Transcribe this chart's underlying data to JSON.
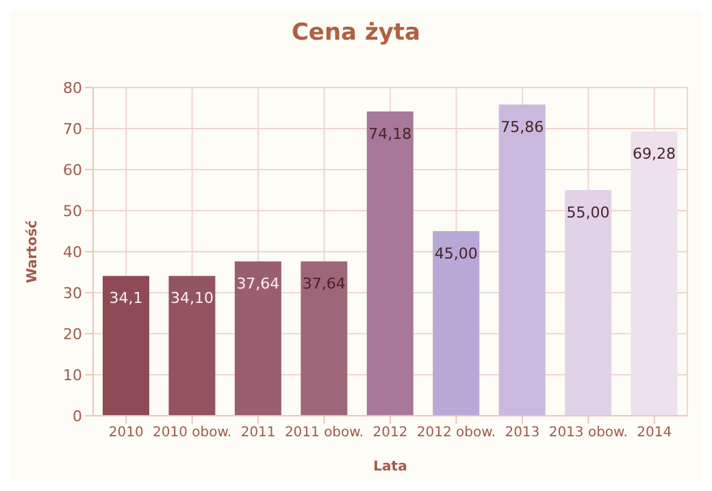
{
  "chart_data": {
    "type": "bar",
    "title": "Cena żyta",
    "xlabel": "Lata",
    "ylabel": "Wartość",
    "categories": [
      "2010",
      "2010 obow.",
      "2011",
      "2011 obow.",
      "2012",
      "2012 obow.",
      "2013",
      "2013 obow.",
      "2014"
    ],
    "values": [
      34.1,
      34.1,
      37.64,
      37.64,
      74.18,
      45,
      75.86,
      55,
      69.28
    ],
    "value_labels": [
      "34,1",
      "34,10",
      "37,64",
      "37,64",
      "74,18",
      "45,00",
      "75,86",
      "55,00",
      "69,28"
    ],
    "colors": [
      "#8e4a55",
      "#93535f",
      "#9a5f6e",
      "#9e6679",
      "#a7789a",
      "#b7a8d6",
      "#cbb9dd",
      "#e2d2e8",
      "#eee0ec"
    ],
    "ylim": [
      0,
      80
    ],
    "yticks": [
      0,
      10,
      20,
      30,
      40,
      50,
      60,
      70,
      80
    ],
    "grid": true
  }
}
